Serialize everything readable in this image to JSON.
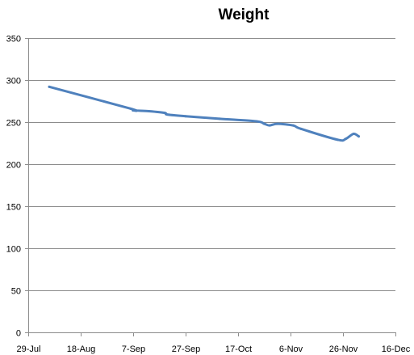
{
  "chart_data": {
    "type": "line",
    "title": "Weight",
    "xlabel": "",
    "ylabel": "",
    "grid": "horizontal",
    "legend": "none",
    "x_axis": {
      "type": "date",
      "min": "2011-07-29",
      "max": "2011-12-16",
      "ticks": [
        {
          "date": "2011-07-29",
          "label": "29-Jul"
        },
        {
          "date": "2011-08-18",
          "label": "18-Aug"
        },
        {
          "date": "2011-09-07",
          "label": "7-Sep"
        },
        {
          "date": "2011-09-27",
          "label": "27-Sep"
        },
        {
          "date": "2011-10-17",
          "label": "17-Oct"
        },
        {
          "date": "2011-11-06",
          "label": "6-Nov"
        },
        {
          "date": "2011-11-26",
          "label": "26-Nov"
        },
        {
          "date": "2011-12-16",
          "label": "16-Dec"
        }
      ]
    },
    "y_axis": {
      "min": 0,
      "max": 350,
      "ticks": [
        0,
        50,
        100,
        150,
        200,
        250,
        300,
        350
      ]
    },
    "series": [
      {
        "color": "#4f81bd",
        "points": [
          {
            "x": "2011-08-06",
            "y": 292
          },
          {
            "x": "2011-09-06",
            "y": 266
          },
          {
            "x": "2011-09-07",
            "y": 264
          },
          {
            "x": "2011-09-13",
            "y": 263
          },
          {
            "x": "2011-09-19",
            "y": 261
          },
          {
            "x": "2011-09-20",
            "y": 259
          },
          {
            "x": "2011-09-27",
            "y": 257
          },
          {
            "x": "2011-10-10",
            "y": 254
          },
          {
            "x": "2011-10-24",
            "y": 251
          },
          {
            "x": "2011-10-27",
            "y": 248
          },
          {
            "x": "2011-10-29",
            "y": 246
          },
          {
            "x": "2011-11-01",
            "y": 248
          },
          {
            "x": "2011-11-07",
            "y": 246
          },
          {
            "x": "2011-11-10",
            "y": 242
          },
          {
            "x": "2011-11-24",
            "y": 229
          },
          {
            "x": "2011-11-27",
            "y": 230
          },
          {
            "x": "2011-11-30",
            "y": 236
          },
          {
            "x": "2011-12-02",
            "y": 233
          }
        ]
      }
    ]
  }
}
